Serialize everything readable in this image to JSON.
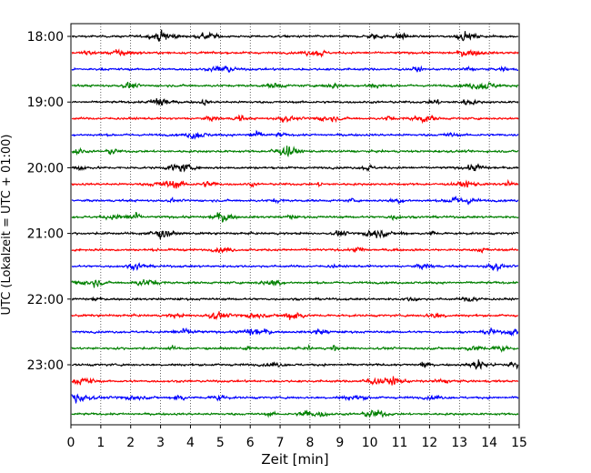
{
  "chart_data": {
    "type": "line",
    "title": "",
    "xlabel": "Zeit  [min]",
    "ylabel": "UTC (Lokalzeit = UTC + 01:00)",
    "xlim": [
      0,
      15
    ],
    "x_ticks": [
      0,
      1,
      2,
      3,
      4,
      5,
      6,
      7,
      8,
      9,
      10,
      11,
      12,
      13,
      14,
      15
    ],
    "y_ticks": [
      "18:00",
      "19:00",
      "20:00",
      "21:00",
      "22:00",
      "23:00"
    ],
    "grid": "vertical-dotted",
    "legend": "none",
    "row_colors": [
      "#000000",
      "#ff0000",
      "#0000ff",
      "#008000"
    ],
    "rows": [
      {
        "start": "18:00",
        "color": "#000000"
      },
      {
        "start": "18:15",
        "color": "#ff0000"
      },
      {
        "start": "18:30",
        "color": "#0000ff"
      },
      {
        "start": "18:45",
        "color": "#008000"
      },
      {
        "start": "19:00",
        "color": "#000000"
      },
      {
        "start": "19:15",
        "color": "#ff0000"
      },
      {
        "start": "19:30",
        "color": "#0000ff"
      },
      {
        "start": "19:45",
        "color": "#008000"
      },
      {
        "start": "20:00",
        "color": "#000000"
      },
      {
        "start": "20:15",
        "color": "#ff0000"
      },
      {
        "start": "20:30",
        "color": "#0000ff"
      },
      {
        "start": "20:45",
        "color": "#008000"
      },
      {
        "start": "21:00",
        "color": "#000000"
      },
      {
        "start": "21:15",
        "color": "#ff0000"
      },
      {
        "start": "21:30",
        "color": "#0000ff"
      },
      {
        "start": "21:45",
        "color": "#008000"
      },
      {
        "start": "22:00",
        "color": "#000000"
      },
      {
        "start": "22:15",
        "color": "#ff0000"
      },
      {
        "start": "22:30",
        "color": "#0000ff"
      },
      {
        "start": "22:45",
        "color": "#008000"
      },
      {
        "start": "23:00",
        "color": "#000000"
      },
      {
        "start": "23:15",
        "color": "#ff0000"
      },
      {
        "start": "23:30",
        "color": "#0000ff"
      },
      {
        "start": "23:45",
        "color": "#008000"
      }
    ]
  }
}
